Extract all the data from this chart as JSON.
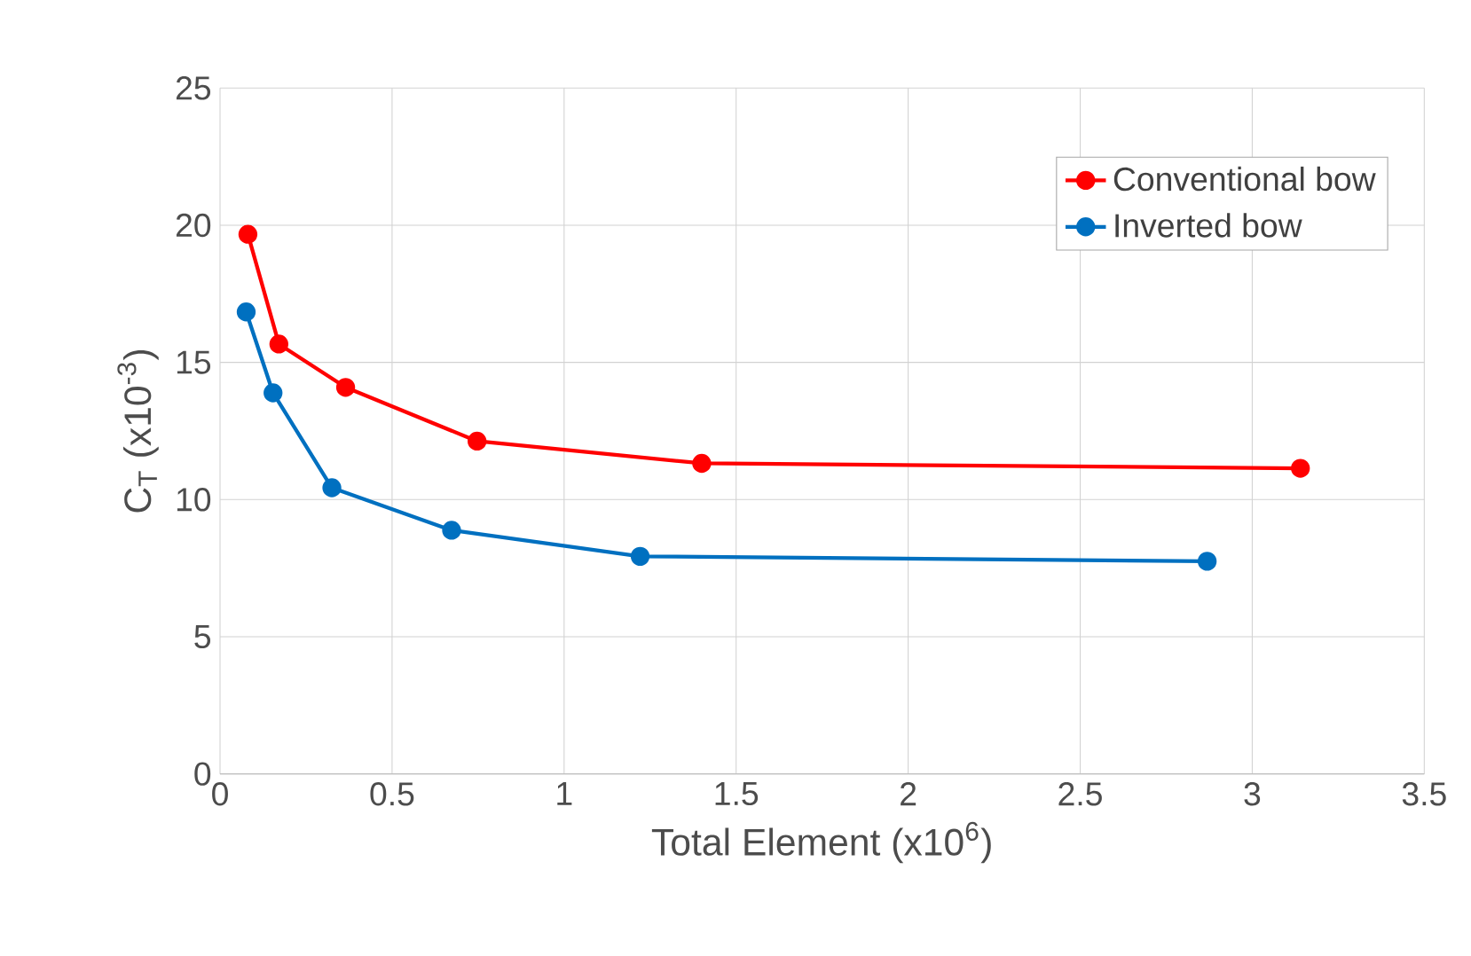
{
  "chart_data": {
    "type": "line",
    "xlabel": "Total Element (x10$^{6}$)",
    "ylabel": "C$_{T}$ (x10$^{-3}$)",
    "xlim": [
      0,
      3.5
    ],
    "xticks": [
      0,
      0.5,
      1,
      1.5,
      2,
      2.5,
      3,
      3.5
    ],
    "ylim": [
      0,
      25
    ],
    "yticks": [
      0,
      5,
      10,
      15,
      20,
      25
    ],
    "grid": true,
    "legend": "top right",
    "marker": "circle",
    "line_style": "solid",
    "series": [
      {
        "name": "Conventional bow",
        "color": "#ff0000",
        "x": [
          0.081,
          0.171,
          0.365,
          0.747,
          1.4,
          3.14
        ],
        "values": [
          19.67,
          15.67,
          14.09,
          12.13,
          11.32,
          11.14
        ]
      },
      {
        "name": "Inverted bow",
        "color": "#0070c0",
        "x": [
          0.076,
          0.154,
          0.325,
          0.673,
          1.221,
          2.869
        ],
        "values": [
          16.84,
          13.89,
          10.43,
          8.88,
          7.93,
          7.75
        ]
      }
    ]
  }
}
